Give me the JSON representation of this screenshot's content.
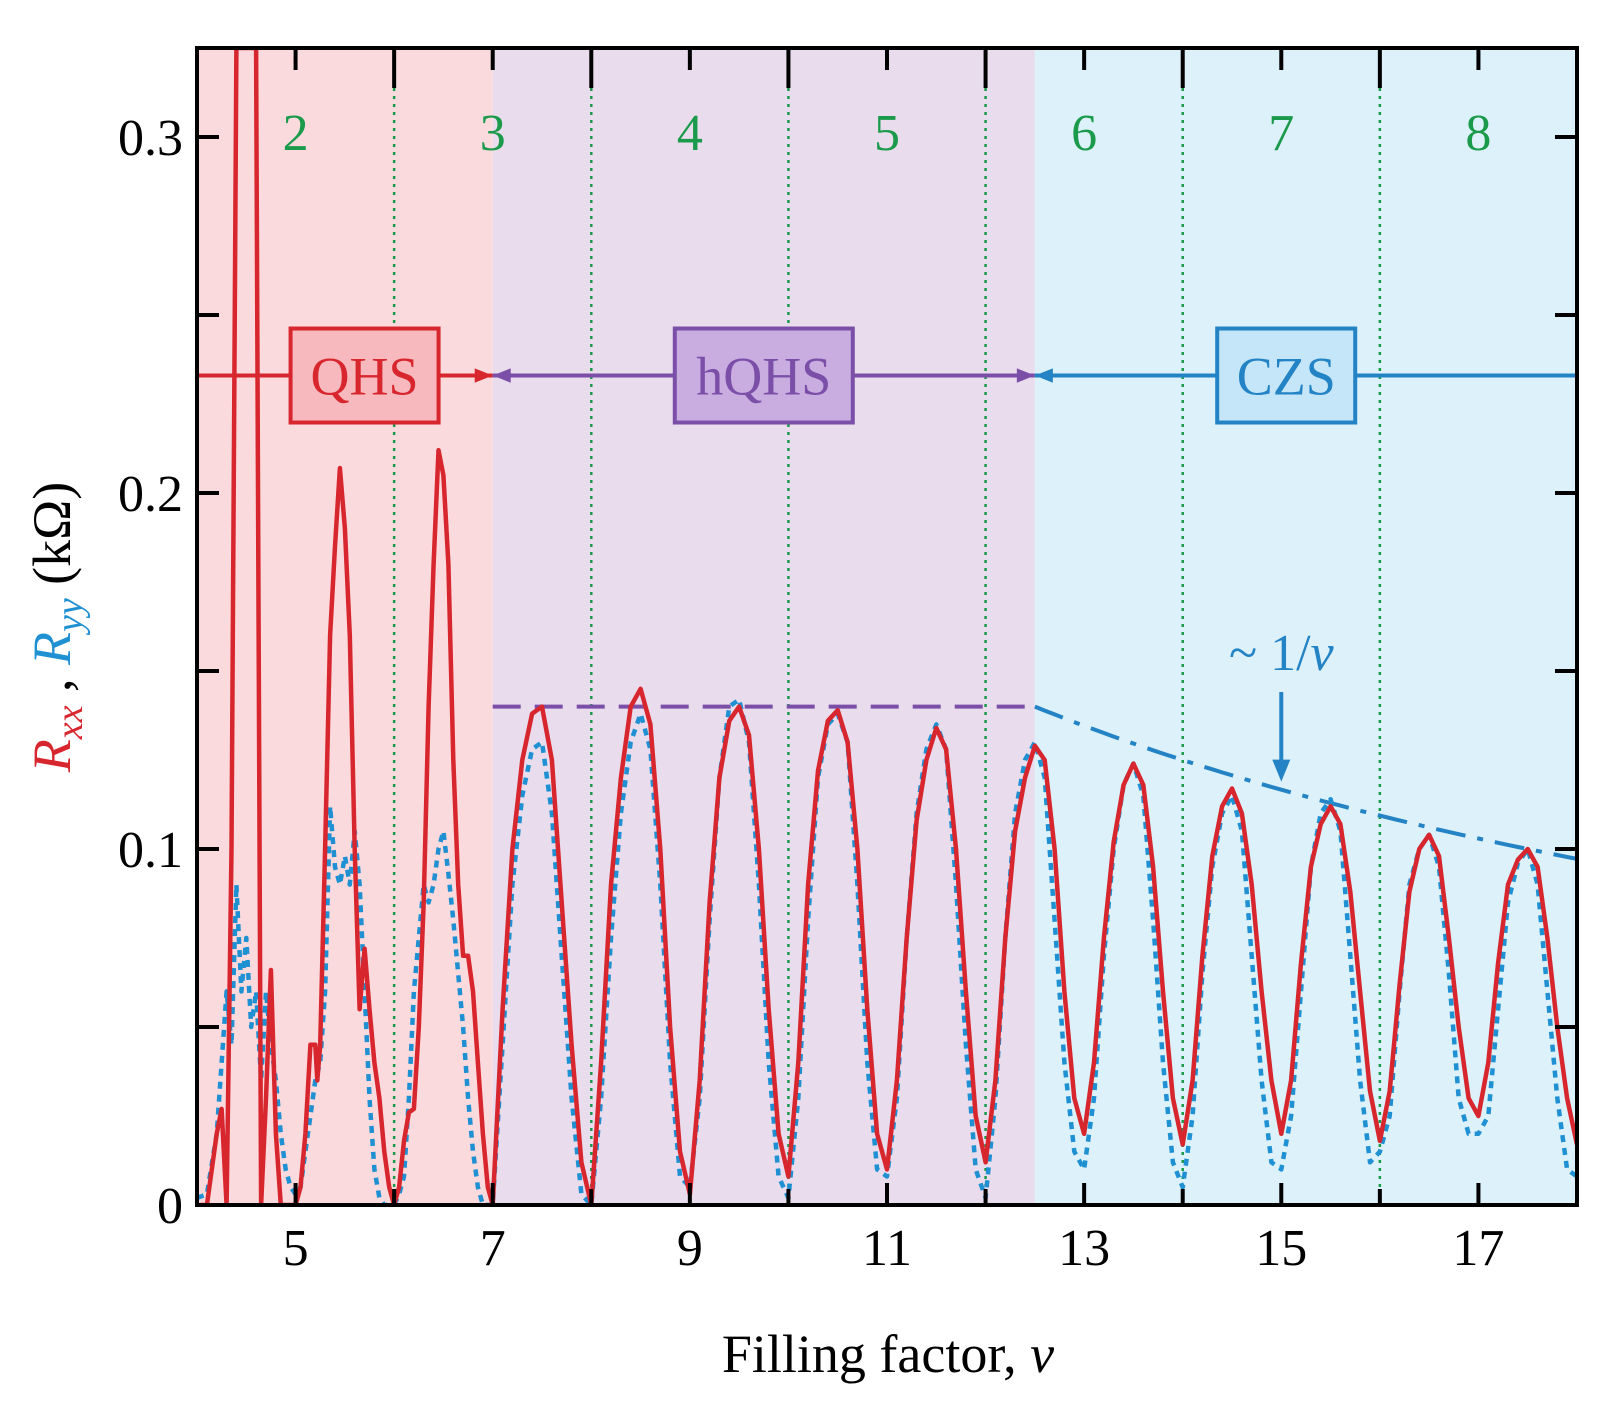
{
  "chart_data": {
    "type": "line",
    "xlabel": "Filling factor, ",
    "xlabel_var": "ν",
    "ylabel": {
      "rxx": "R",
      "rxx_sub": "xx",
      "sep": " , ",
      "ryy": "R",
      "ryy_sub": "yy",
      "unit": " (kΩ)"
    },
    "xlim": [
      4,
      18
    ],
    "ylim": [
      0,
      0.325
    ],
    "x_ticks": [
      5,
      7,
      9,
      11,
      13,
      15,
      17
    ],
    "y_ticks": [
      {
        "value": 0,
        "label": "0"
      },
      {
        "value": 0.1,
        "label": "0.1"
      },
      {
        "value": 0.2,
        "label": "0.2"
      },
      {
        "value": 0.3,
        "label": "0.3"
      }
    ],
    "top_axis": {
      "label_positions": [
        5,
        7,
        9,
        11,
        13,
        15,
        17
      ],
      "labels": [
        "2",
        "3",
        "4",
        "5",
        "6",
        "7",
        "8"
      ],
      "dotted_lines_at": [
        6,
        8,
        10,
        12,
        14,
        16
      ]
    },
    "regions": [
      {
        "name": "QHS",
        "from": 4,
        "to": 7,
        "color": "#fadadd",
        "edge": "#d7262e",
        "box_fill": "#f7b9bd"
      },
      {
        "name": "hQHS",
        "from": 7,
        "to": 12.5,
        "color": "#e9dcec",
        "edge": "#7b4ea8",
        "box_fill": "#c9ade0"
      },
      {
        "name": "CZS",
        "from": 12.5,
        "to": 18,
        "color": "#dcf1fa",
        "edge": "#2383c4",
        "box_fill": "#c4e6f8"
      }
    ],
    "region_arrow_y": 0.233,
    "plateau": {
      "from": 7,
      "to": 12.5,
      "value": 0.14
    },
    "inverse_fit": {
      "from": 12.5,
      "to": 18,
      "constant": 1.75
    },
    "annotation": {
      "text": "~ 1/",
      "var": "ν",
      "arrow_x": 15
    },
    "colors": {
      "rxx": "#d7262e",
      "ryy": "#1f90d2",
      "green": "#1a9a4a",
      "purple": "#7b4ea8",
      "blue": "#2383c4"
    },
    "series": [
      {
        "name": "Rxx",
        "style": "solid",
        "x": [
          4.0,
          4.1,
          4.2,
          4.25,
          4.3,
          4.35,
          4.4,
          4.45,
          4.5,
          4.55,
          4.6,
          4.65,
          4.7,
          4.75,
          4.8,
          4.85,
          4.9,
          4.95,
          5.0,
          5.05,
          5.1,
          5.15,
          5.2,
          5.22,
          5.25,
          5.3,
          5.35,
          5.4,
          5.45,
          5.5,
          5.55,
          5.6,
          5.65,
          5.7,
          5.75,
          5.8,
          5.85,
          5.9,
          5.95,
          6.0,
          6.05,
          6.1,
          6.15,
          6.2,
          6.25,
          6.3,
          6.35,
          6.4,
          6.45,
          6.5,
          6.55,
          6.6,
          6.65,
          6.7,
          6.75,
          6.8,
          6.85,
          6.9,
          6.95,
          7.0,
          7.1,
          7.2,
          7.3,
          7.4,
          7.5,
          7.6,
          7.7,
          7.8,
          7.9,
          8.0,
          8.1,
          8.2,
          8.3,
          8.4,
          8.5,
          8.6,
          8.7,
          8.8,
          8.9,
          9.0,
          9.1,
          9.2,
          9.3,
          9.4,
          9.5,
          9.6,
          9.7,
          9.8,
          9.9,
          10.0,
          10.1,
          10.2,
          10.3,
          10.4,
          10.5,
          10.6,
          10.7,
          10.8,
          10.9,
          11.0,
          11.1,
          11.2,
          11.3,
          11.4,
          11.5,
          11.6,
          11.7,
          11.8,
          11.9,
          12.0,
          12.1,
          12.2,
          12.3,
          12.4,
          12.5,
          12.6,
          12.7,
          12.8,
          12.9,
          13.0,
          13.1,
          13.2,
          13.3,
          13.4,
          13.5,
          13.6,
          13.7,
          13.8,
          13.9,
          14.0,
          14.1,
          14.2,
          14.3,
          14.4,
          14.5,
          14.6,
          14.7,
          14.8,
          14.9,
          15.0,
          15.1,
          15.2,
          15.3,
          15.4,
          15.5,
          15.6,
          15.7,
          15.8,
          15.9,
          16.0,
          16.1,
          16.2,
          16.3,
          16.4,
          16.5,
          16.6,
          16.7,
          16.8,
          16.9,
          17.0,
          17.1,
          17.2,
          17.3,
          17.4,
          17.5,
          17.6,
          17.7,
          17.8,
          17.9,
          18.0
        ],
        "y": [
          0.0,
          0.0,
          0.02,
          0.027,
          0.0,
          0.1,
          0.325,
          0.325,
          0.325,
          0.325,
          0.325,
          0.0,
          0.03,
          0.066,
          0.02,
          0.0,
          0.0,
          0.0,
          0.0,
          0.005,
          0.02,
          0.045,
          0.045,
          0.035,
          0.045,
          0.1,
          0.16,
          0.185,
          0.207,
          0.19,
          0.16,
          0.1,
          0.055,
          0.072,
          0.055,
          0.04,
          0.03,
          0.015,
          0.005,
          0.0,
          0.005,
          0.018,
          0.026,
          0.027,
          0.05,
          0.085,
          0.14,
          0.18,
          0.212,
          0.205,
          0.18,
          0.125,
          0.09,
          0.07,
          0.07,
          0.06,
          0.04,
          0.02,
          0.005,
          0.0,
          0.055,
          0.1,
          0.125,
          0.138,
          0.14,
          0.125,
          0.085,
          0.045,
          0.012,
          0.0,
          0.04,
          0.09,
          0.12,
          0.14,
          0.145,
          0.135,
          0.1,
          0.05,
          0.015,
          0.003,
          0.035,
          0.085,
          0.12,
          0.136,
          0.14,
          0.132,
          0.1,
          0.055,
          0.02,
          0.008,
          0.04,
          0.09,
          0.122,
          0.136,
          0.139,
          0.13,
          0.1,
          0.055,
          0.02,
          0.01,
          0.035,
          0.075,
          0.108,
          0.125,
          0.134,
          0.128,
          0.1,
          0.06,
          0.025,
          0.012,
          0.035,
          0.075,
          0.105,
          0.12,
          0.129,
          0.125,
          0.1,
          0.06,
          0.03,
          0.02,
          0.04,
          0.075,
          0.102,
          0.118,
          0.124,
          0.118,
          0.095,
          0.06,
          0.03,
          0.017,
          0.035,
          0.07,
          0.098,
          0.112,
          0.117,
          0.11,
          0.09,
          0.06,
          0.035,
          0.02,
          0.035,
          0.068,
          0.095,
          0.107,
          0.112,
          0.107,
          0.088,
          0.06,
          0.032,
          0.018,
          0.032,
          0.062,
          0.088,
          0.1,
          0.104,
          0.098,
          0.075,
          0.05,
          0.03,
          0.025,
          0.04,
          0.068,
          0.09,
          0.097,
          0.1,
          0.095,
          0.075,
          0.05,
          0.03,
          0.017
        ]
      },
      {
        "name": "Ryy",
        "style": "dotted",
        "x": [
          4.0,
          4.1,
          4.2,
          4.3,
          4.35,
          4.4,
          4.45,
          4.5,
          4.55,
          4.6,
          4.65,
          4.7,
          4.75,
          4.8,
          4.85,
          4.9,
          4.95,
          5.0,
          5.05,
          5.1,
          5.15,
          5.2,
          5.25,
          5.3,
          5.35,
          5.4,
          5.45,
          5.5,
          5.55,
          5.6,
          5.65,
          5.7,
          5.75,
          5.8,
          5.85,
          5.9,
          5.95,
          6.0,
          6.05,
          6.1,
          6.15,
          6.2,
          6.25,
          6.3,
          6.35,
          6.4,
          6.45,
          6.5,
          6.55,
          6.6,
          6.65,
          6.7,
          6.75,
          6.8,
          6.85,
          6.9,
          6.95,
          7.0,
          7.1,
          7.2,
          7.3,
          7.4,
          7.5,
          7.6,
          7.7,
          7.8,
          7.9,
          8.0,
          8.1,
          8.2,
          8.3,
          8.4,
          8.5,
          8.6,
          8.7,
          8.8,
          8.9,
          9.0,
          9.1,
          9.2,
          9.3,
          9.4,
          9.5,
          9.6,
          9.7,
          9.8,
          9.9,
          10.0,
          10.1,
          10.2,
          10.3,
          10.4,
          10.5,
          10.6,
          10.7,
          10.8,
          10.9,
          11.0,
          11.1,
          11.2,
          11.3,
          11.4,
          11.5,
          11.6,
          11.7,
          11.8,
          11.9,
          12.0,
          12.1,
          12.2,
          12.3,
          12.4,
          12.5,
          12.6,
          12.7,
          12.8,
          12.9,
          13.0,
          13.1,
          13.2,
          13.3,
          13.4,
          13.5,
          13.6,
          13.7,
          13.8,
          13.9,
          14.0,
          14.1,
          14.2,
          14.3,
          14.4,
          14.5,
          14.6,
          14.7,
          14.8,
          14.9,
          15.0,
          15.1,
          15.2,
          15.3,
          15.4,
          15.5,
          15.6,
          15.7,
          15.8,
          15.9,
          16.0,
          16.1,
          16.2,
          16.3,
          16.4,
          16.5,
          16.6,
          16.7,
          16.8,
          16.9,
          17.0,
          17.1,
          17.2,
          17.3,
          17.4,
          17.5,
          17.6,
          17.7,
          17.8,
          17.9,
          18.0
        ],
        "y": [
          0.002,
          0.003,
          0.02,
          0.06,
          0.045,
          0.09,
          0.06,
          0.075,
          0.05,
          0.06,
          0.035,
          0.06,
          0.045,
          0.035,
          0.02,
          0.01,
          0.005,
          0.003,
          0.005,
          0.015,
          0.025,
          0.035,
          0.04,
          0.06,
          0.112,
          0.095,
          0.09,
          0.098,
          0.09,
          0.105,
          0.09,
          0.06,
          0.03,
          0.01,
          0.002,
          0.0,
          0.0,
          0.0,
          0.003,
          0.008,
          0.03,
          0.06,
          0.075,
          0.09,
          0.085,
          0.09,
          0.1,
          0.105,
          0.093,
          0.08,
          0.065,
          0.05,
          0.03,
          0.015,
          0.005,
          0.0,
          0.0,
          0.0,
          0.045,
          0.09,
          0.115,
          0.128,
          0.13,
          0.11,
          0.07,
          0.03,
          0.003,
          0.0,
          0.03,
          0.075,
          0.11,
          0.13,
          0.138,
          0.128,
          0.09,
          0.04,
          0.008,
          0.005,
          0.03,
          0.08,
          0.12,
          0.14,
          0.142,
          0.13,
          0.09,
          0.04,
          0.008,
          0.002,
          0.03,
          0.08,
          0.12,
          0.135,
          0.138,
          0.13,
          0.09,
          0.04,
          0.01,
          0.008,
          0.03,
          0.075,
          0.11,
          0.128,
          0.135,
          0.128,
          0.09,
          0.045,
          0.01,
          0.002,
          0.03,
          0.075,
          0.11,
          0.125,
          0.13,
          0.12,
          0.08,
          0.04,
          0.015,
          0.01,
          0.03,
          0.07,
          0.1,
          0.118,
          0.124,
          0.115,
          0.08,
          0.04,
          0.012,
          0.005,
          0.025,
          0.065,
          0.095,
          0.11,
          0.115,
          0.105,
          0.07,
          0.035,
          0.012,
          0.01,
          0.025,
          0.06,
          0.095,
          0.11,
          0.114,
          0.105,
          0.07,
          0.035,
          0.012,
          0.015,
          0.025,
          0.06,
          0.09,
          0.1,
          0.104,
          0.095,
          0.065,
          0.03,
          0.02,
          0.02,
          0.025,
          0.055,
          0.085,
          0.096,
          0.1,
          0.09,
          0.06,
          0.03,
          0.01,
          0.008
        ]
      }
    ]
  }
}
